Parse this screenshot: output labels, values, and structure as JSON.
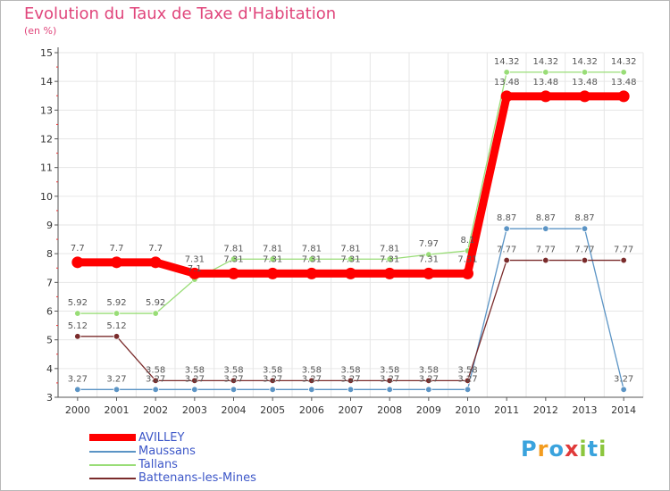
{
  "title": "Evolution du Taux de Taxe d'Habitation",
  "subtitle": "(en %)",
  "logo": {
    "text": "Proxiti",
    "letters": [
      {
        "ch": "P",
        "color": "#3aa3dd"
      },
      {
        "ch": "r",
        "color": "#f39c1f"
      },
      {
        "ch": "o",
        "color": "#3aa3dd"
      },
      {
        "ch": "x",
        "color": "#e03a3a"
      },
      {
        "ch": "i",
        "color": "#8cc63e"
      },
      {
        "ch": "t",
        "color": "#3aa3dd"
      },
      {
        "ch": "i",
        "color": "#8cc63e"
      }
    ]
  },
  "chart_data": {
    "type": "line",
    "title": "Evolution du Taux de Taxe d'Habitation",
    "ylabel": "(en %)",
    "x": [
      "2000",
      "2001",
      "2002",
      "2003",
      "2004",
      "2005",
      "2006",
      "2007",
      "2008",
      "2009",
      "2010",
      "2011",
      "2012",
      "2013",
      "2014"
    ],
    "ylim": [
      3,
      15
    ],
    "yticks": [
      "3",
      "4",
      "5",
      "6",
      "7",
      "8",
      "9",
      "10",
      "11",
      "12",
      "13",
      "14",
      "15"
    ],
    "grid": true,
    "legend_position": "bottom-left",
    "series": [
      {
        "name": "AVILLEY",
        "color": "#ff0000",
        "values": [
          7.7,
          7.7,
          7.7,
          7.31,
          7.31,
          7.31,
          7.31,
          7.31,
          7.31,
          7.31,
          7.31,
          13.48,
          13.48,
          13.48,
          13.48
        ],
        "labels": [
          "7.7",
          "7.7",
          "7.7",
          "7.31",
          "7.31",
          "7.31",
          "7.31",
          "7.31",
          "7.31",
          "7.31",
          "7.31",
          "13.48",
          "13.48",
          "13.48",
          "13.48"
        ]
      },
      {
        "name": "Maussans",
        "color": "#5b94c5",
        "values": [
          3.27,
          3.27,
          3.27,
          3.27,
          3.27,
          3.27,
          3.27,
          3.27,
          3.27,
          3.27,
          3.27,
          8.87,
          8.87,
          8.87,
          3.27
        ],
        "labels": [
          "3.27",
          "3.27",
          "3.27",
          "3.27",
          "3.27",
          "3.27",
          "3.27",
          "3.27",
          "3.27",
          "3.27",
          "3.27",
          "8.87",
          "8.87",
          "8.87",
          "3.27"
        ]
      },
      {
        "name": "Tallans",
        "color": "#99dd77",
        "values": [
          5.92,
          5.92,
          5.92,
          7.1,
          7.81,
          7.81,
          7.81,
          7.81,
          7.81,
          7.97,
          8.1,
          14.32,
          14.32,
          14.32,
          14.32
        ],
        "labels": [
          "5.92",
          "5.92",
          "5.92",
          "7.1",
          "7.81",
          "7.81",
          "7.81",
          "7.81",
          "7.81",
          "7.97",
          "8.1",
          "14.32",
          "14.32",
          "14.32",
          "14.32"
        ]
      },
      {
        "name": "Battenans-les-Mines",
        "color": "#7a2b2b",
        "values": [
          5.12,
          5.12,
          3.58,
          3.58,
          3.58,
          3.58,
          3.58,
          3.58,
          3.58,
          3.58,
          3.58,
          7.77,
          7.77,
          7.77,
          7.77
        ],
        "labels": [
          "5.12",
          "5.12",
          "3.58",
          "3.58",
          "3.58",
          "3.58",
          "3.58",
          "3.58",
          "3.58",
          "3.58",
          "3.58",
          "7.77",
          "7.77",
          "7.77",
          "7.77"
        ]
      }
    ]
  }
}
